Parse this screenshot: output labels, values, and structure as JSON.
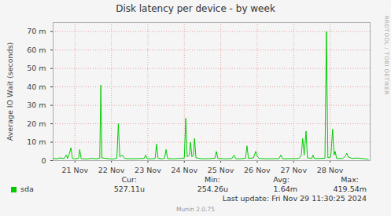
{
  "chart_data": {
    "type": "line",
    "title": "Disk latency per device - by week",
    "y_label": "Average IO Wait (seconds)",
    "xlim": [
      20.4,
      29.1
    ],
    "xticks": [
      {
        "value": 21,
        "label": "21 Nov"
      },
      {
        "value": 22,
        "label": "22 Nov"
      },
      {
        "value": 23,
        "label": "23 Nov"
      },
      {
        "value": 24,
        "label": "24 Nov"
      },
      {
        "value": 25,
        "label": "25 Nov"
      },
      {
        "value": 26,
        "label": "26 Nov"
      },
      {
        "value": 27,
        "label": "27 Nov"
      },
      {
        "value": 28,
        "label": "28 Nov"
      }
    ],
    "ylim": [
      0,
      0.075
    ],
    "yticks": [
      0,
      {
        "value": 0.01,
        "label": "10 m"
      },
      {
        "value": 0.02,
        "label": "20 m"
      },
      {
        "value": 0.03,
        "label": "30 m"
      },
      {
        "value": 0.04,
        "label": "40 m"
      },
      {
        "value": 0.05,
        "label": "50 m"
      },
      {
        "value": 0.06,
        "label": "60 m"
      },
      {
        "value": 0.07,
        "label": "70 m"
      }
    ],
    "grid": true,
    "x": [
      20.4,
      20.5,
      20.6,
      20.7,
      20.76,
      20.8,
      20.85,
      20.89,
      20.93,
      21.0,
      21.1,
      21.13,
      21.17,
      21.3,
      21.45,
      21.6,
      21.68,
      21.71,
      21.74,
      21.9,
      22.05,
      22.15,
      22.19,
      22.23,
      22.3,
      22.36,
      22.5,
      22.7,
      22.9,
      22.94,
      22.98,
      23.1,
      23.2,
      23.24,
      23.28,
      23.4,
      23.46,
      23.5,
      23.54,
      23.7,
      23.9,
      24.0,
      24.04,
      24.08,
      24.14,
      24.17,
      24.21,
      24.25,
      24.28,
      24.32,
      24.5,
      24.7,
      24.84,
      24.88,
      24.92,
      25.1,
      25.3,
      25.37,
      25.41,
      25.6,
      25.68,
      25.72,
      25.76,
      25.9,
      25.96,
      26.0,
      26.05,
      26.3,
      26.6,
      26.65,
      26.7,
      27.0,
      27.15,
      27.21,
      27.25,
      27.29,
      27.34,
      27.38,
      27.5,
      27.53,
      27.57,
      27.75,
      27.86,
      27.9,
      27.94,
      28.02,
      28.07,
      28.11,
      28.14,
      28.18,
      28.35,
      28.42,
      28.46,
      28.5,
      28.6,
      28.75,
      28.9,
      29.0,
      29.05
    ],
    "series": [
      {
        "name": "sda",
        "color": "#00cc00",
        "values": [
          0.0012,
          0.001,
          0.0015,
          0.0011,
          0.003,
          0.0012,
          0.004,
          0.007,
          0.0012,
          0.001,
          0.0013,
          0.006,
          0.0011,
          0.0009,
          0.0012,
          0.001,
          0.0013,
          0.041,
          0.0015,
          0.0011,
          0.0009,
          0.0014,
          0.02,
          0.002,
          0.003,
          0.0012,
          0.001,
          0.0011,
          0.0012,
          0.003,
          0.0011,
          0.001,
          0.0012,
          0.009,
          0.0012,
          0.001,
          0.0013,
          0.006,
          0.0011,
          0.001,
          0.0012,
          0.0014,
          0.023,
          0.002,
          0.003,
          0.01,
          0.002,
          0.003,
          0.012,
          0.0015,
          0.001,
          0.0011,
          0.0013,
          0.005,
          0.0012,
          0.001,
          0.0011,
          0.003,
          0.001,
          0.0011,
          0.0013,
          0.008,
          0.0012,
          0.0015,
          0.005,
          0.0025,
          0.0012,
          0.001,
          0.0011,
          0.003,
          0.001,
          0.0011,
          0.0012,
          0.003,
          0.012,
          0.003,
          0.016,
          0.0015,
          0.0012,
          0.003,
          0.0011,
          0.0012,
          0.0013,
          0.07,
          0.0015,
          0.002,
          0.017,
          0.003,
          0.005,
          0.0012,
          0.0011,
          0.0025,
          0.004,
          0.002,
          0.0012,
          0.0014,
          0.0011,
          0.0009,
          0.0005
        ],
        "stat_labels": [
          "Cur:",
          "Min:",
          "Avg:",
          "Max:"
        ],
        "stat_values": [
          "527.11u",
          "254.26u",
          "1.64m",
          "419.54m"
        ]
      }
    ],
    "footer": "Last update: Fri Nov 29 11:30:25 2024",
    "credit": "Munin 2.0.75",
    "side_text": "RRDTOOL / TOBI OETIKER"
  }
}
